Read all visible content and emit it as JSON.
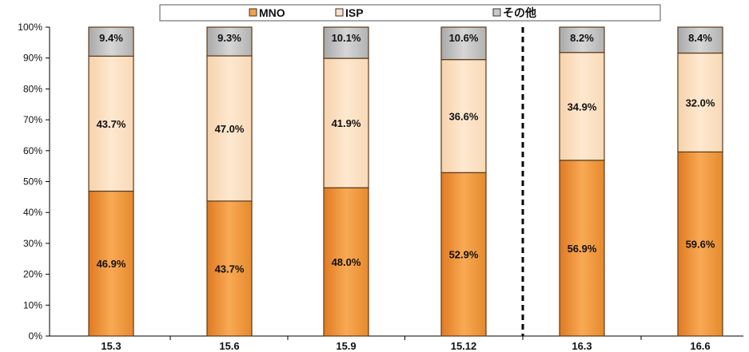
{
  "chart_data": {
    "type": "bar",
    "stacked": true,
    "categories": [
      "15.3",
      "15.6",
      "15.9",
      "15.12",
      "16.3",
      "16.6"
    ],
    "series": [
      {
        "name": "MNO",
        "values": [
          46.9,
          43.7,
          48.0,
          52.9,
          56.9,
          59.6
        ],
        "color": "#f7a04a"
      },
      {
        "name": "ISP",
        "values": [
          43.7,
          47.0,
          41.9,
          36.6,
          34.9,
          32.0
        ],
        "color": "#fde3c6"
      },
      {
        "name": "その他",
        "values": [
          9.4,
          9.3,
          10.1,
          10.6,
          8.2,
          8.4
        ],
        "color": "#c8c8c8"
      }
    ],
    "value_labels": [
      [
        "46.9%",
        "43.7%",
        "48.0%",
        "52.9%",
        "56.9%",
        "59.6%"
      ],
      [
        "43.7%",
        "47.0%",
        "41.9%",
        "36.6%",
        "34.9%",
        "32.0%"
      ],
      [
        "9.4%",
        "9.3%",
        "10.1%",
        "10.6%",
        "8.2%",
        "8.4%"
      ]
    ],
    "ylim": [
      0,
      100
    ],
    "yticks": [
      "0%",
      "10%",
      "20%",
      "30%",
      "40%",
      "50%",
      "60%",
      "70%",
      "80%",
      "90%",
      "100%"
    ],
    "grid": false,
    "legend_position": "top",
    "divider_after_category": "15.12",
    "xlabel": "",
    "ylabel": "",
    "title": ""
  }
}
